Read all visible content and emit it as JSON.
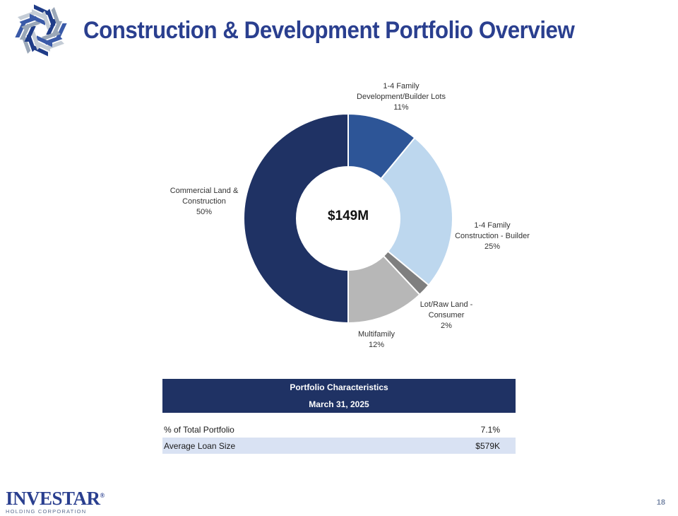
{
  "header": {
    "title": "Construction & Development Portfolio Overview"
  },
  "colors": {
    "title": "#2a3f8f",
    "table_header": "#1f3264",
    "table_alt_row": "#d9e2f3"
  },
  "chart_data": {
    "type": "pie",
    "variant": "donut",
    "center_label": "$149M",
    "slices": [
      {
        "label_lines": [
          "1-4 Family",
          "Development/Builder  Lots"
        ],
        "value": 11,
        "value_label": "11%",
        "color": "#2d5597"
      },
      {
        "label_lines": [
          "1-4 Family",
          "Construction  - Builder"
        ],
        "value": 25,
        "value_label": "25%",
        "color": "#bdd7ee"
      },
      {
        "label_lines": [
          "Lot/Raw Land -",
          "Consumer"
        ],
        "value": 2,
        "value_label": "2%",
        "color": "#7f7f7f"
      },
      {
        "label_lines": [
          "Multifamily"
        ],
        "value": 12,
        "value_label": "12%",
        "color": "#b7b7b7"
      },
      {
        "label_lines": [
          "Commercial Land &",
          "Construction"
        ],
        "value": 50,
        "value_label": "50%",
        "color": "#1f3264"
      }
    ]
  },
  "table": {
    "header_line1": "Portfolio Characteristics",
    "header_line2": "March 31, 2025",
    "rows": [
      {
        "label": "% of Total Portfolio",
        "value": "7.1%"
      },
      {
        "label": "Average Loan Size",
        "value": "$579K"
      }
    ]
  },
  "footer": {
    "brand_name": "INVESTAR",
    "brand_mark": "®",
    "brand_sub": "HOLDING CORPORATION",
    "page_number": "18"
  }
}
